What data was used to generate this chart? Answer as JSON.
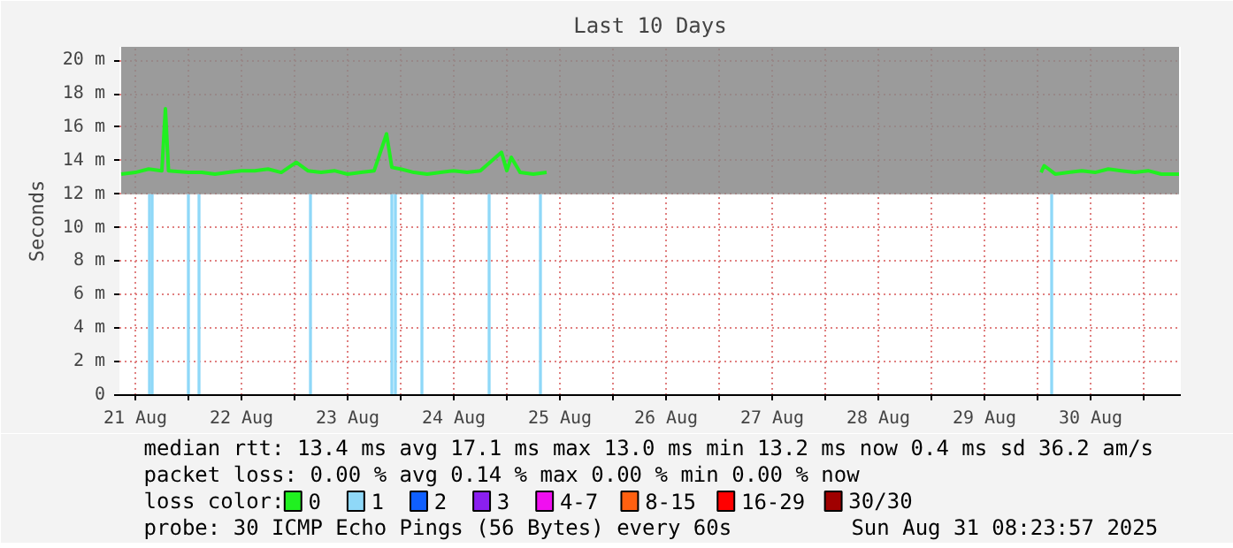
{
  "chart_data": {
    "type": "line",
    "title": "Last 10 Days",
    "ylabel": "Seconds",
    "xlim": [
      "2025-08-21T08:24",
      "2025-08-31T08:24"
    ],
    "xticks": [
      {
        "value": "2025-08-21T12:00",
        "label": "21 Aug"
      },
      {
        "value": "2025-08-22T00:00",
        "label": null
      },
      {
        "value": "2025-08-22T12:00",
        "label": "22 Aug"
      },
      {
        "value": "2025-08-23T00:00",
        "label": null
      },
      {
        "value": "2025-08-23T12:00",
        "label": "23 Aug"
      },
      {
        "value": "2025-08-24T00:00",
        "label": null
      },
      {
        "value": "2025-08-24T12:00",
        "label": "24 Aug"
      },
      {
        "value": "2025-08-25T00:00",
        "label": null
      },
      {
        "value": "2025-08-25T12:00",
        "label": "25 Aug"
      },
      {
        "value": "2025-08-26T00:00",
        "label": null
      },
      {
        "value": "2025-08-26T12:00",
        "label": "26 Aug"
      },
      {
        "value": "2025-08-27T00:00",
        "label": null
      },
      {
        "value": "2025-08-27T12:00",
        "label": "27 Aug"
      },
      {
        "value": "2025-08-28T00:00",
        "label": null
      },
      {
        "value": "2025-08-28T12:00",
        "label": "28 Aug"
      },
      {
        "value": "2025-08-29T00:00",
        "label": null
      },
      {
        "value": "2025-08-29T12:00",
        "label": "29 Aug"
      },
      {
        "value": "2025-08-30T00:00",
        "label": null
      },
      {
        "value": "2025-08-30T12:00",
        "label": "30 Aug"
      },
      {
        "value": "2025-08-31T00:00",
        "label": null
      }
    ],
    "ylim": [
      0,
      20.8
    ],
    "yticks": [
      0,
      {
        "value": 2,
        "label": "2 m"
      },
      {
        "value": 4,
        "label": "4 m"
      },
      {
        "value": 6,
        "label": "6 m"
      },
      {
        "value": 8,
        "label": "8 m"
      },
      {
        "value": 10,
        "label": "10 m"
      },
      {
        "value": 12,
        "label": "12 m"
      },
      {
        "value": 14,
        "label": "14 m"
      },
      {
        "value": 16,
        "label": "16 m"
      },
      {
        "value": 18,
        "label": "18 m"
      },
      {
        "value": 20,
        "label": "20 m"
      }
    ],
    "grid": true,
    "line_style": "solid",
    "legend": "bottom",
    "legend_title": "loss color:",
    "series": [
      {
        "name": "0",
        "color": "#20f020",
        "x": [
          "2025-08-21T08:48",
          "2025-08-21T12:00",
          "2025-08-21T15:00",
          "2025-08-21T18:00",
          "2025-08-21T18:48",
          "2025-08-21T19:30",
          "2025-08-22T00:00",
          "2025-08-22T03:00",
          "2025-08-22T06:00",
          "2025-08-22T09:00",
          "2025-08-22T12:00",
          "2025-08-22T15:00",
          "2025-08-22T18:00",
          "2025-08-22T21:00",
          "2025-08-23T00:24",
          "2025-08-23T03:00",
          "2025-08-23T06:00",
          "2025-08-23T09:00",
          "2025-08-23T12:00",
          "2025-08-23T15:00",
          "2025-08-23T18:00",
          "2025-08-23T20:48",
          "2025-08-23T22:00",
          "2025-08-24T00:00",
          "2025-08-24T03:00",
          "2025-08-24T06:00",
          "2025-08-24T09:00",
          "2025-08-24T12:00",
          "2025-08-24T15:00",
          "2025-08-24T18:00",
          "2025-08-24T22:48",
          "2025-08-25T00:00",
          "2025-08-25T01:00",
          "2025-08-25T03:00",
          "2025-08-25T06:00",
          "2025-08-25T09:00",
          "2025-08-25T09:12",
          "2025-08-30T00:48",
          "2025-08-30T01:30",
          "2025-08-30T04:00",
          "2025-08-30T07:00",
          "2025-08-30T10:00",
          "2025-08-30T13:00",
          "2025-08-30T16:00",
          "2025-08-30T19:00",
          "2025-08-30T22:00",
          "2025-08-31T01:00",
          "2025-08-31T04:00",
          "2025-08-31T08:00"
        ],
        "values": [
          13.2,
          13.3,
          13.5,
          13.4,
          17.1,
          13.4,
          13.3,
          13.3,
          13.2,
          13.3,
          13.4,
          13.4,
          13.5,
          13.3,
          13.9,
          13.4,
          13.3,
          13.4,
          13.2,
          13.3,
          13.4,
          15.6,
          13.6,
          13.5,
          13.3,
          13.2,
          13.3,
          13.4,
          13.3,
          13.4,
          14.5,
          13.4,
          14.2,
          13.3,
          13.2,
          13.3,
          null,
          13.3,
          13.7,
          13.2,
          13.3,
          13.4,
          13.3,
          13.5,
          13.4,
          13.3,
          13.4,
          13.2,
          13.2
        ],
        "lower": [
          12,
          12,
          12,
          12,
          12,
          12,
          12,
          12,
          12,
          12,
          12,
          12,
          12,
          12,
          12,
          12,
          12,
          12,
          12,
          12,
          12,
          12,
          12,
          12,
          12,
          12,
          12,
          12,
          12,
          12,
          12,
          12,
          12,
          12,
          12,
          12,
          null,
          12,
          12,
          12,
          12,
          12,
          12,
          12,
          12,
          12,
          12,
          12,
          12
        ],
        "upper": [
          20.8,
          20.8,
          20.8,
          20.8,
          20.8,
          20.8,
          20.8,
          20.8,
          20.8,
          20.8,
          20.8,
          20.8,
          20.8,
          20.8,
          20.8,
          20.8,
          20.8,
          20.8,
          20.8,
          20.8,
          20.8,
          20.8,
          20.8,
          20.8,
          20.8,
          20.8,
          20.8,
          20.8,
          20.8,
          20.8,
          20.8,
          20.8,
          20.8,
          20.8,
          20.8,
          20.8,
          null,
          20.8,
          20.8,
          20.8,
          20.8,
          20.8,
          20.8,
          20.8,
          20.8,
          20.8,
          20.8,
          20.8,
          20.8
        ]
      },
      {
        "name": "1",
        "color": "#8fd8f8",
        "type": "bar",
        "x": [
          "2025-08-21T15:12",
          "2025-08-21T15:48",
          "2025-08-22T00:00",
          "2025-08-22T02:24",
          "2025-08-23T03:36",
          "2025-08-23T22:00",
          "2025-08-23T22:48",
          "2025-08-24T04:48",
          "2025-08-24T20:00",
          "2025-08-25T07:36",
          "2025-08-30T03:12"
        ],
        "values": [
          12,
          12,
          12,
          12,
          12,
          12,
          12,
          12,
          12,
          12,
          12
        ]
      },
      {
        "name": "2",
        "color": "#0f5fff",
        "type": "bar"
      },
      {
        "name": "3",
        "color": "#8a1ff0",
        "type": "bar"
      },
      {
        "name": "4-7",
        "color": "#f00ff0",
        "type": "bar"
      },
      {
        "name": "8-15",
        "color": "#ff6010",
        "type": "bar"
      },
      {
        "name": "16-29",
        "color": "#ff0000",
        "type": "bar"
      },
      {
        "name": "30/30",
        "color": "#a00000",
        "type": "bar"
      }
    ],
    "annotations": [
      "median rtt:  13.4 ms avg  17.1 ms max  13.0 ms min  13.2 ms now  0.4 ms sd  36.2   am/s",
      "packet loss: 0.00 % avg  0.14 % max  0.00 % min  0.00 % now",
      "probe:       30 ICMP Echo Pings (56 Bytes) every 60s",
      "Sun Aug 31 08:23:57 2025"
    ]
  }
}
